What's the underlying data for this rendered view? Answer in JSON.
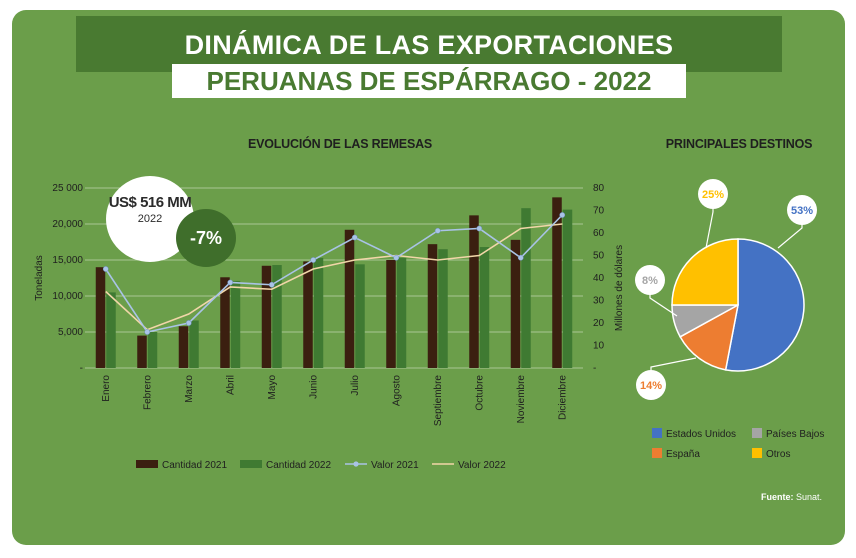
{
  "header": {
    "title_line1": "DINÁMICA DE LAS EXPORTACIONES",
    "title_line2": "PERUANAS DE ESPÁRRAGO - 2022"
  },
  "left_section": {
    "subtitle": "EVOLUCIÓN DE LAS REMESAS",
    "highlight_value": "US$ 516 MM",
    "highlight_year": "2022",
    "highlight_change": "-7%"
  },
  "right_section": {
    "subtitle": "PRINCIPALES DESTINOS"
  },
  "source": {
    "label": "Fuente:",
    "text": "Sunat."
  },
  "colors": {
    "card_bg": "#6b9e4a",
    "header_band": "#497a31",
    "bar_2021": "#3b1f10",
    "bar_2022": "#3f7a32",
    "line_2021": "#a9c3e6",
    "line_2022": "#f1d6a8",
    "line_2021_marker": "#a9c3e6"
  },
  "chart_data": [
    {
      "type": "bar",
      "title": "EVOLUCIÓN DE LAS REMESAS",
      "categories": [
        "Enero",
        "Febrero",
        "Marzo",
        "Abril",
        "Mayo",
        "Junio",
        "Julio",
        "Agosto",
        "Septiembre",
        "Octubre",
        "Noviembre",
        "Diciembre"
      ],
      "ylabel": "Toneladas",
      "y2label": "Millones de dólares",
      "ylim": [
        0,
        25000
      ],
      "y2lim": [
        0,
        80
      ],
      "yticks": [
        "-",
        "5,000",
        "10,000",
        "15,000",
        "20,000",
        "25 000"
      ],
      "y2ticks": [
        "-",
        "10",
        "20",
        "30",
        "40",
        "50",
        "60",
        "70",
        "80"
      ],
      "legend_position": "bottom",
      "series": [
        {
          "name": "Cantidad 2021",
          "kind": "bar",
          "axis": "left",
          "values": [
            14000,
            4500,
            5800,
            12600,
            14200,
            14800,
            19200,
            15000,
            17200,
            21200,
            17800,
            23700
          ]
        },
        {
          "name": "Cantidad 2022",
          "kind": "bar",
          "axis": "left",
          "values": [
            10500,
            5000,
            6600,
            12100,
            14300,
            15300,
            14400,
            15300,
            16500,
            16800,
            22200,
            22000
          ]
        },
        {
          "name": "Valor 2021",
          "kind": "line",
          "axis": "right",
          "values": [
            44,
            16,
            20,
            38,
            37,
            48,
            58,
            49,
            61,
            62,
            49,
            68
          ]
        },
        {
          "name": "Valor 2022",
          "kind": "line",
          "axis": "right",
          "values": [
            34,
            17,
            24,
            36,
            35,
            44,
            48,
            50,
            48,
            50,
            62,
            64
          ]
        }
      ]
    },
    {
      "type": "pie",
      "title": "PRINCIPALES DESTINOS",
      "slices": [
        {
          "name": "Estados Unidos",
          "value": 53,
          "label": "53%",
          "color": "#4472c4"
        },
        {
          "name": "España",
          "value": 14,
          "label": "14%",
          "color": "#ed7d31"
        },
        {
          "name": "Países Bajos",
          "value": 8,
          "label": "8%",
          "color": "#a5a5a5"
        },
        {
          "name": "Otros",
          "value": 25,
          "label": "25%",
          "color": "#ffc000"
        }
      ]
    }
  ]
}
